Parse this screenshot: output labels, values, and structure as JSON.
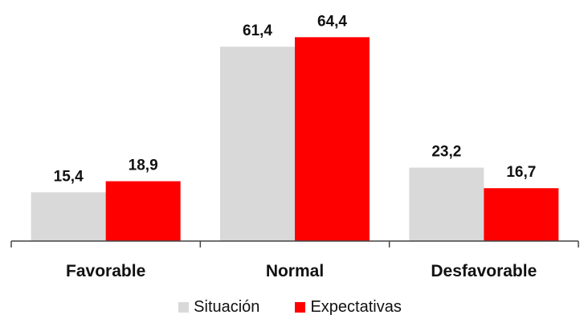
{
  "chart_data": {
    "type": "bar",
    "categories": [
      "Favorable",
      "Normal",
      "Desfavorable"
    ],
    "series": [
      {
        "name": "Situación",
        "color": "#d9d9d9",
        "values": [
          15.4,
          61.4,
          23.2
        ],
        "labels": [
          "15,4",
          "61,4",
          "23,2"
        ]
      },
      {
        "name": "Expectativas",
        "color": "#ff0000",
        "values": [
          18.9,
          64.4,
          16.7
        ],
        "labels": [
          "18,9",
          "64,4",
          "16,7"
        ]
      }
    ],
    "ylim": [
      0,
      66
    ],
    "grid": false,
    "legend_position": "bottom"
  }
}
